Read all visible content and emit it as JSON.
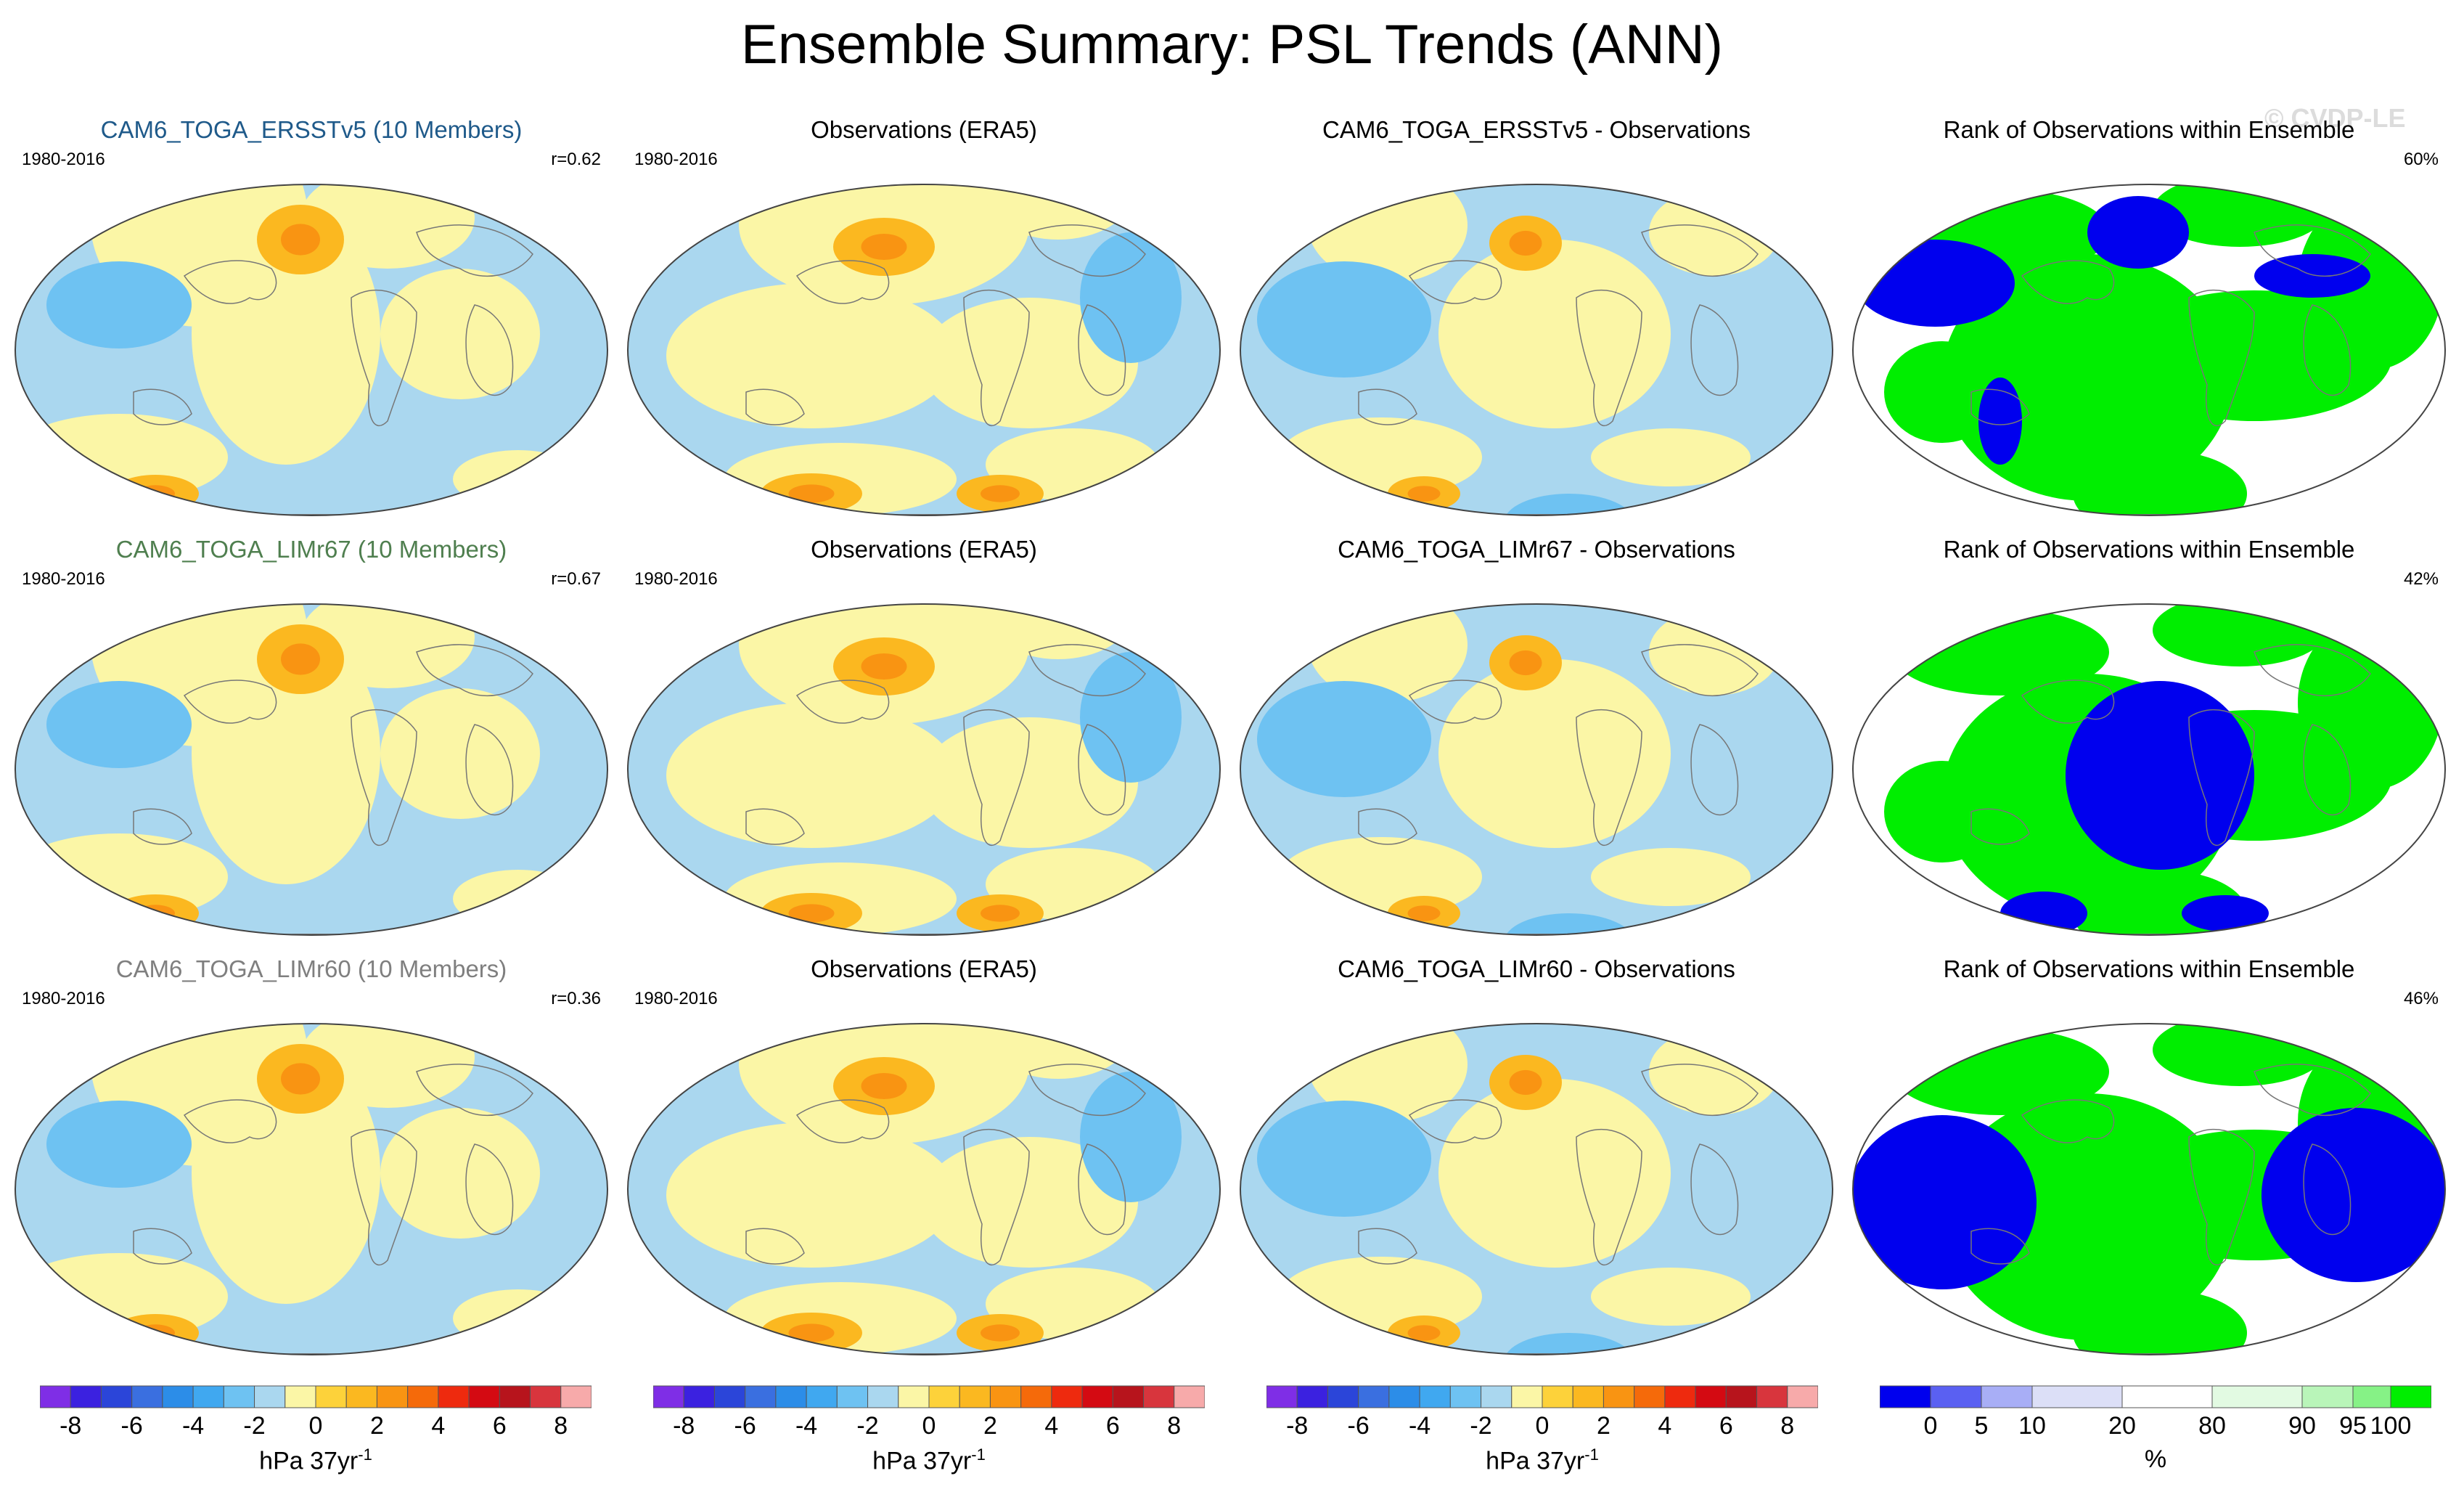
{
  "title": "Ensemble Summary: PSL Trends (ANN)",
  "watermark": "© CVDP-LE",
  "colors": {
    "psl_scale": [
      "#7f2ee6",
      "#3b21e0",
      "#2b45d9",
      "#3a6fe0",
      "#2c8de8",
      "#40a8f0",
      "#6ec2f2",
      "#aad7ef",
      "#fbf6a6",
      "#fdd23a",
      "#fbb820",
      "#f99412",
      "#f56a0a",
      "#ee2a0e",
      "#d40a12",
      "#b7141c",
      "#d8353d",
      "#f7aaaa"
    ],
    "rank_scale": [
      "#0000ee",
      "#5a60f2",
      "#a8aef6",
      "#dcdff7",
      "#ffffff",
      "#e2fae2",
      "#b9f5b9",
      "#86f286",
      "#00ee00"
    ],
    "map_blue": "#aad7ef",
    "map_yellow": "#fbf6a6"
  },
  "rows": [
    {
      "model_color": "#1f5a8a",
      "panels": [
        {
          "title": "CAM6_TOGA_ERSSTv5 (10 Members)",
          "years": "1980-2016",
          "stat": "r=0.62",
          "kind": "model"
        },
        {
          "title": "Observations (ERA5)",
          "years": "1980-2016",
          "stat": "",
          "kind": "obs"
        },
        {
          "title": "CAM6_TOGA_ERSSTv5 - Observations",
          "years": "",
          "stat": "",
          "kind": "diff"
        },
        {
          "title": "Rank of Observations within Ensemble",
          "years": "",
          "stat": "60%",
          "kind": "rank"
        }
      ]
    },
    {
      "model_color": "#4f7f4f",
      "panels": [
        {
          "title": "CAM6_TOGA_LIMr67 (10 Members)",
          "years": "1980-2016",
          "stat": "r=0.67",
          "kind": "model"
        },
        {
          "title": "Observations (ERA5)",
          "years": "1980-2016",
          "stat": "",
          "kind": "obs"
        },
        {
          "title": "CAM6_TOGA_LIMr67 - Observations",
          "years": "",
          "stat": "",
          "kind": "diff"
        },
        {
          "title": "Rank of Observations within Ensemble",
          "years": "",
          "stat": "42%",
          "kind": "rank"
        }
      ]
    },
    {
      "model_color": "#7f7f7f",
      "panels": [
        {
          "title": "CAM6_TOGA_LIMr60 (10 Members)",
          "years": "1980-2016",
          "stat": "r=0.36",
          "kind": "model"
        },
        {
          "title": "Observations (ERA5)",
          "years": "1980-2016",
          "stat": "",
          "kind": "obs"
        },
        {
          "title": "CAM6_TOGA_LIMr60 - Observations",
          "years": "",
          "stat": "",
          "kind": "diff"
        },
        {
          "title": "Rank of Observations within Ensemble",
          "years": "",
          "stat": "46%",
          "kind": "rank"
        }
      ]
    }
  ],
  "colorbars": [
    {
      "ticks": [
        "-8",
        "-6",
        "-4",
        "-2",
        "0",
        "2",
        "4",
        "6",
        "8"
      ],
      "units": "hPa 37yr",
      "units_sup": "-1",
      "kind": "psl"
    },
    {
      "ticks": [
        "-8",
        "-6",
        "-4",
        "-2",
        "0",
        "2",
        "4",
        "6",
        "8"
      ],
      "units": "hPa 37yr",
      "units_sup": "-1",
      "kind": "psl"
    },
    {
      "ticks": [
        "-8",
        "-6",
        "-4",
        "-2",
        "0",
        "2",
        "4",
        "6",
        "8"
      ],
      "units": "hPa 37yr",
      "units_sup": "-1",
      "kind": "psl"
    },
    {
      "ticks": [
        "0",
        "5",
        "10",
        "20",
        "80",
        "90",
        "95",
        "100"
      ],
      "units": "%",
      "units_sup": "",
      "kind": "rank"
    }
  ]
}
